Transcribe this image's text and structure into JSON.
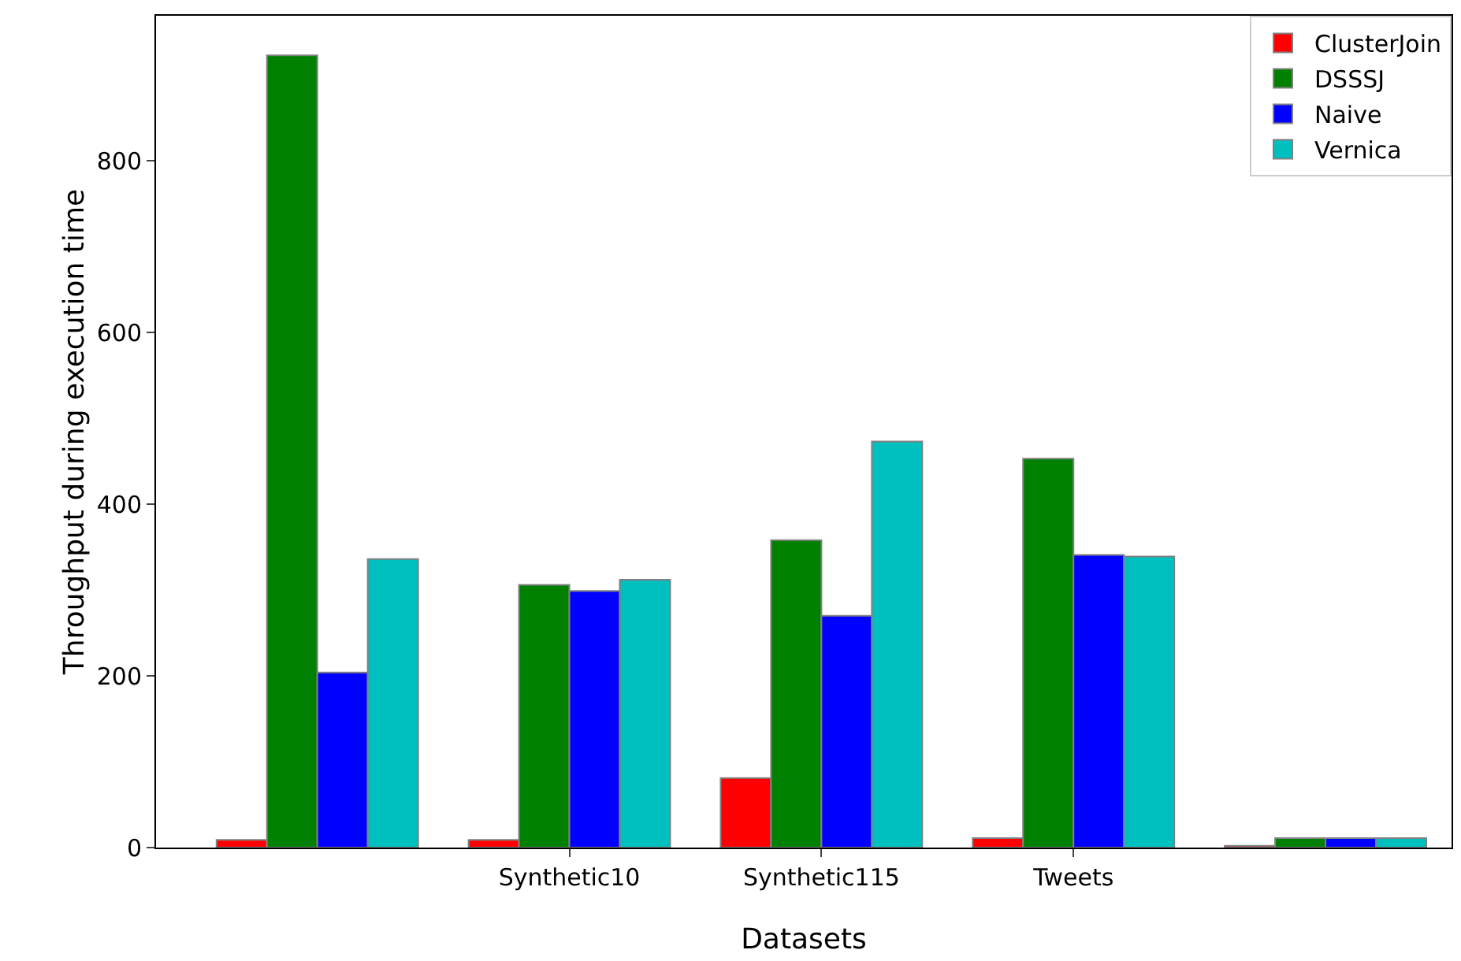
{
  "chart_data": {
    "type": "bar",
    "xlabel": "Datasets",
    "ylabel": "Throughput during execution time",
    "categories": [
      null,
      "Synthetic10",
      "Synthetic115",
      "Tweets",
      null
    ],
    "series": [
      {
        "name": "ClusterJoin",
        "color": "#ff0000",
        "values": [
          9,
          9,
          81,
          11,
          2
        ]
      },
      {
        "name": "DSSSJ",
        "color": "#008000",
        "values": [
          923,
          306,
          358,
          453,
          11
        ]
      },
      {
        "name": "Naive",
        "color": "#0000ff",
        "values": [
          204,
          299,
          270,
          341,
          11
        ]
      },
      {
        "name": "Vernica",
        "color": "#00bfbf",
        "values": [
          336,
          312,
          473,
          339,
          11
        ]
      }
    ],
    "ylim": [
      0,
      969
    ],
    "yticks": [
      0,
      200,
      400,
      600,
      800
    ],
    "grid": false,
    "legend": "top right"
  }
}
